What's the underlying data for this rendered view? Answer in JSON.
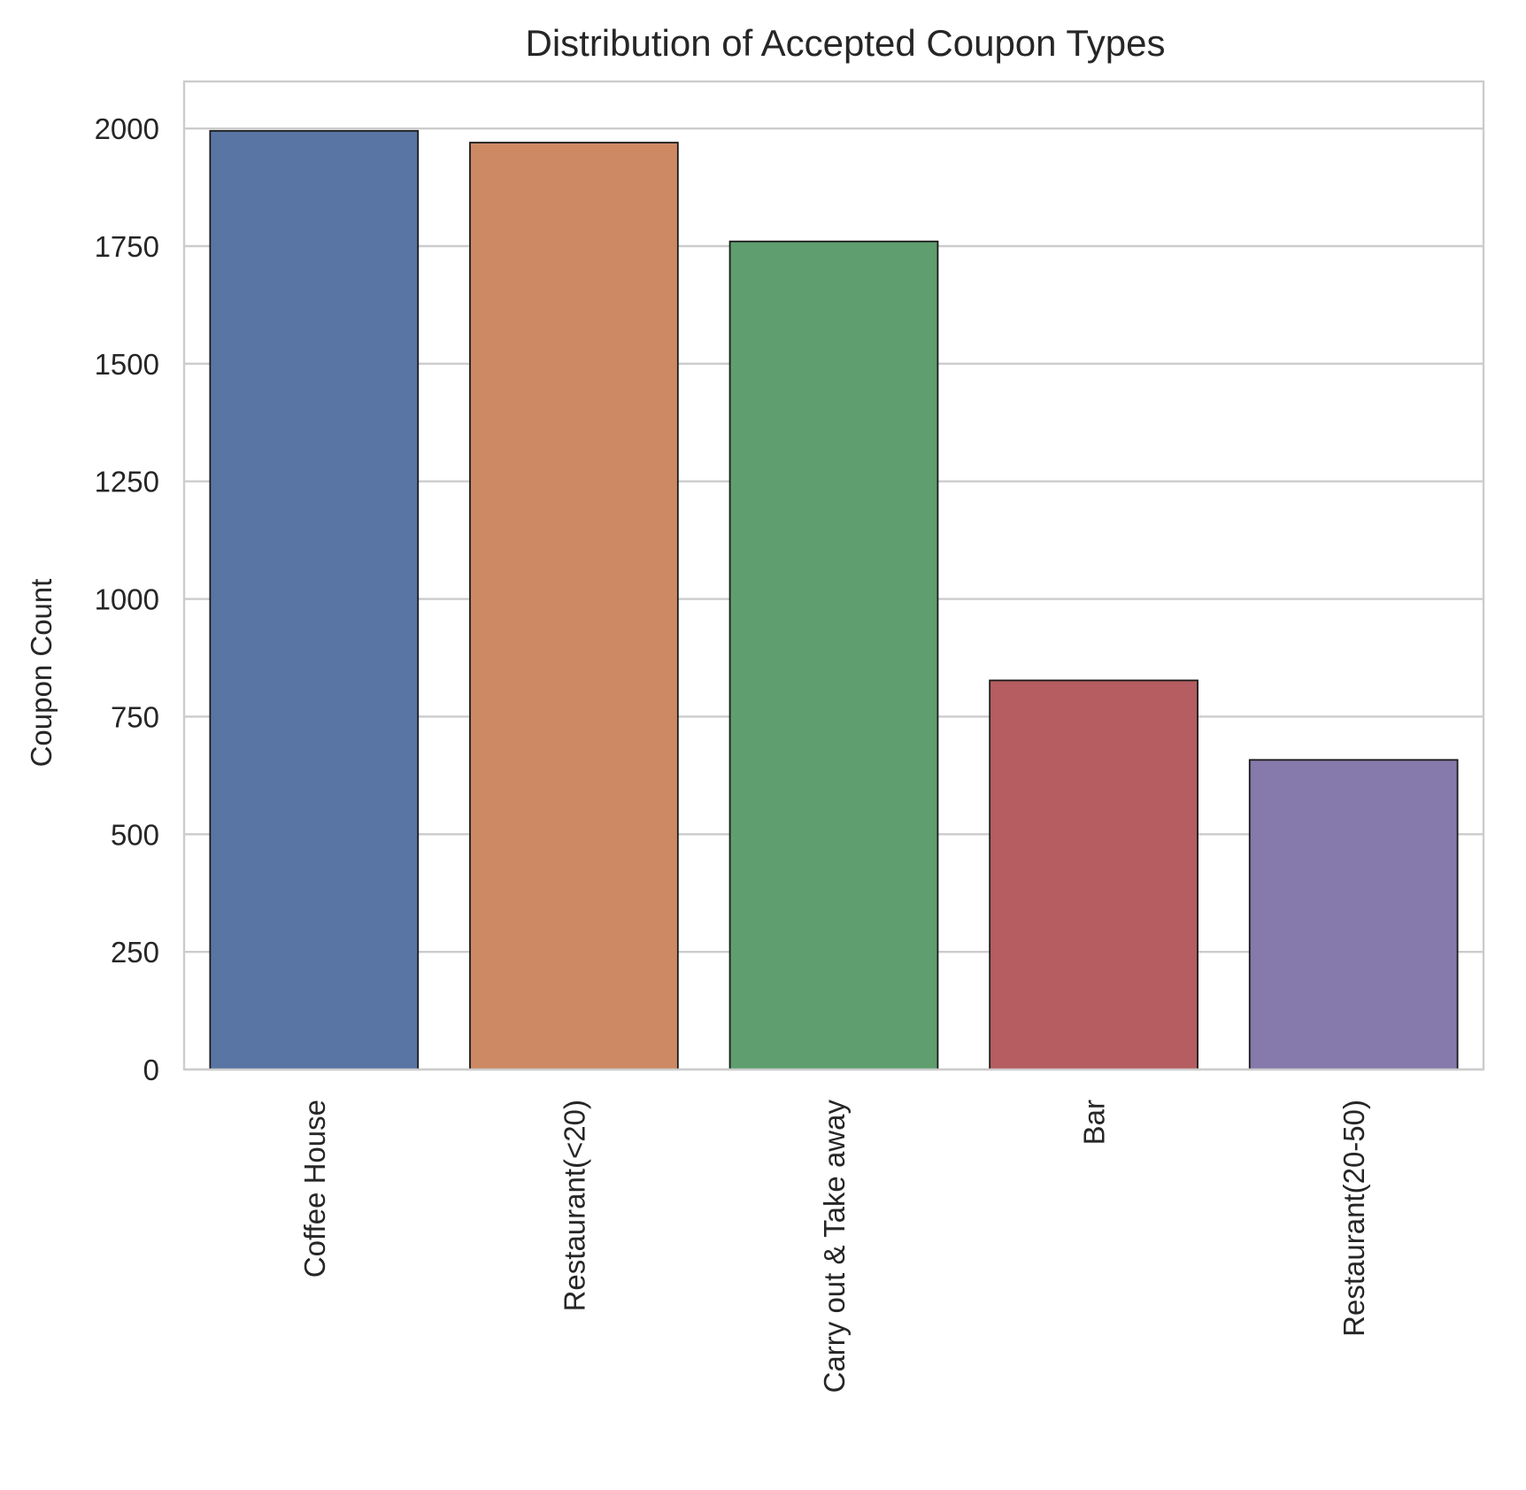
{
  "chart_data": {
    "type": "bar",
    "title": "Distribution of Accepted Coupon Types",
    "xlabel": "",
    "ylabel": "Coupon Count",
    "categories": [
      "Coffee House",
      "Restaurant(<20)",
      "Carry out & Take away",
      "Bar",
      "Restaurant(20-50)"
    ],
    "values": [
      1995,
      1970,
      1760,
      827,
      658
    ],
    "ylim": [
      0,
      2100
    ],
    "yticks": [
      0,
      250,
      500,
      750,
      1000,
      1250,
      1500,
      1750,
      2000
    ],
    "ytick_labels": [
      "0",
      "250",
      "500",
      "750",
      "1000",
      "1250",
      "1500",
      "1750",
      "2000"
    ],
    "colors": [
      "#5975a4",
      "#cc8963",
      "#5f9e6e",
      "#b55d60",
      "#857aab"
    ],
    "bar_edge_color": "#1a1a1a",
    "grid": "y",
    "grid_color": "#cccccc",
    "spine_color": "#cccccc",
    "x_tick_rotation": "vertical"
  }
}
